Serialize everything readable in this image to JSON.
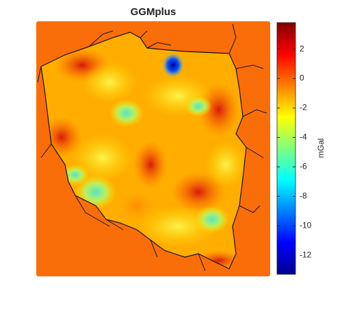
{
  "title": "GGMplus",
  "colorbar": {
    "label": "mGal",
    "colormap": "jet",
    "lim": [
      -13.3,
      3.8
    ],
    "ticks": [
      2,
      0,
      -2,
      -4,
      -6,
      -8,
      -10,
      -12
    ]
  }
}
